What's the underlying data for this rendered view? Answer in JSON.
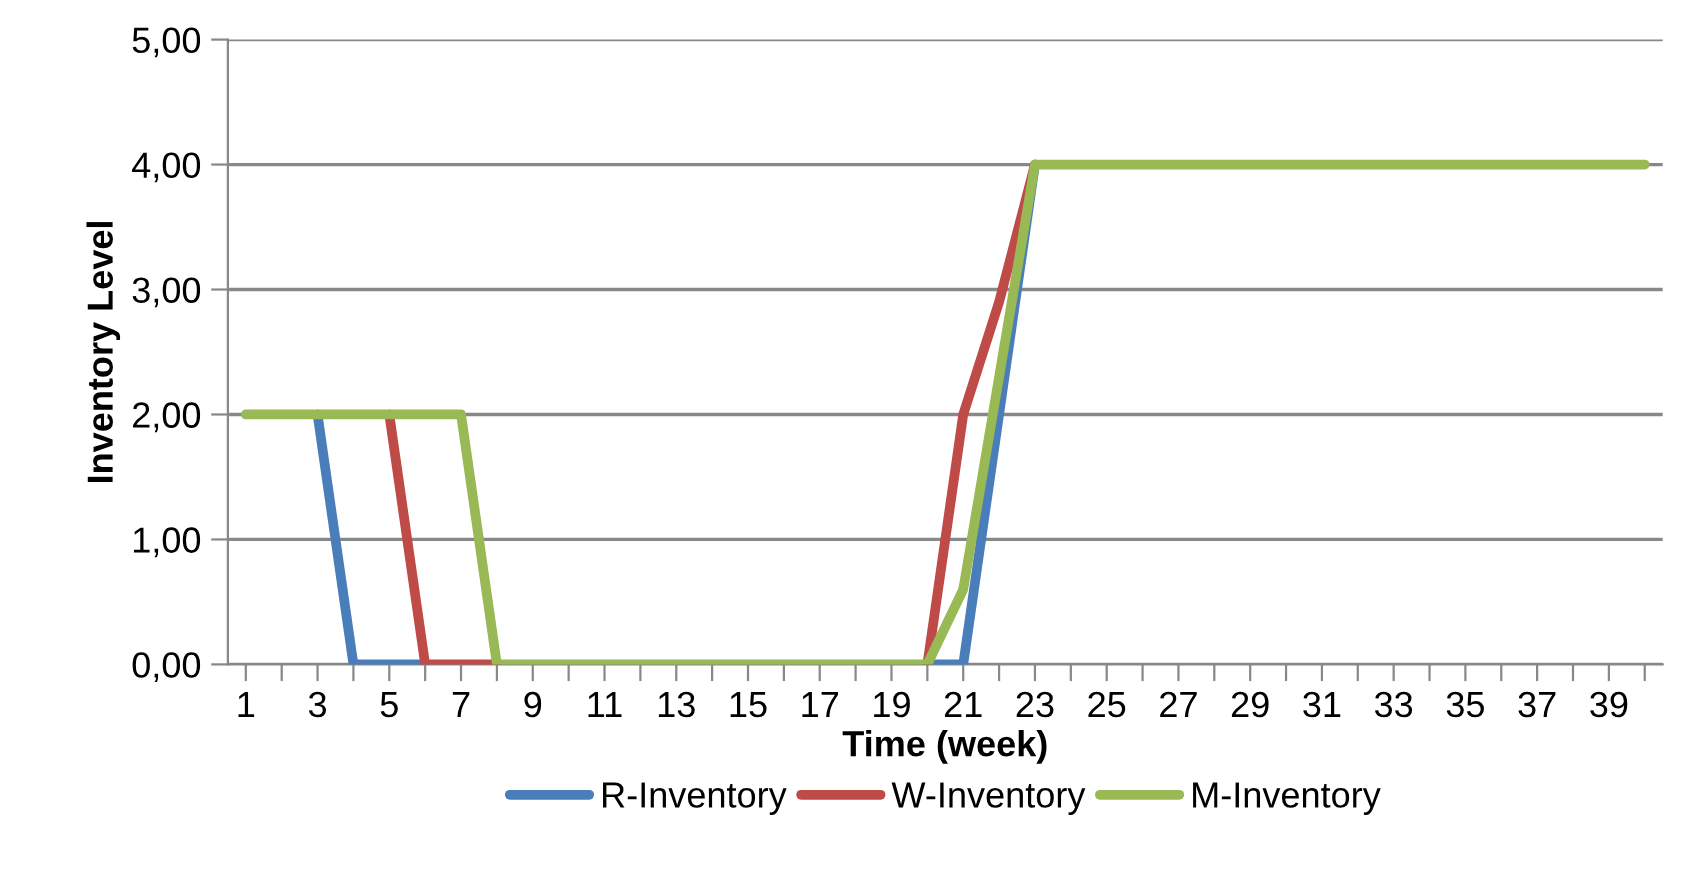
{
  "chart_data": {
    "type": "line",
    "xlabel": "Time (week)",
    "ylabel": "Inventory Level",
    "categories": [
      "1",
      null,
      "3",
      null,
      "5",
      null,
      "7",
      null,
      "9",
      null,
      "11",
      null,
      "13",
      null,
      "15",
      null,
      "17",
      null,
      "19",
      null,
      "21",
      null,
      "23",
      null,
      "25",
      null,
      "27",
      null,
      "29",
      null,
      "31",
      null,
      "33",
      null,
      "35",
      null,
      "37",
      null,
      "39",
      null
    ],
    "series": [
      {
        "name": "R-Inventory",
        "color": "#4a7ebb",
        "values": [
          null,
          null,
          2,
          0,
          0,
          0,
          null,
          null,
          null,
          null,
          null,
          null,
          null,
          null,
          null,
          null,
          null,
          null,
          null,
          0,
          0,
          2,
          4,
          null,
          null,
          null,
          null,
          null,
          null,
          null,
          null,
          null,
          null,
          null,
          null,
          null,
          null,
          null,
          null,
          null
        ]
      },
      {
        "name": "W-Inventory",
        "color": "#be4b48",
        "values": [
          null,
          null,
          null,
          null,
          2,
          0,
          0,
          0,
          null,
          null,
          null,
          null,
          null,
          null,
          null,
          null,
          null,
          null,
          null,
          0,
          2,
          2.9,
          4,
          null,
          null,
          null,
          null,
          null,
          null,
          null,
          null,
          null,
          null,
          null,
          null,
          null,
          null,
          null,
          null,
          null
        ]
      },
      {
        "name": "M-Inventory",
        "color": "#98b954",
        "values": [
          2,
          2,
          2,
          2,
          2,
          2,
          2,
          0,
          0,
          0,
          0,
          0,
          0,
          0,
          0,
          0,
          0,
          0,
          0,
          0,
          0.6,
          2.3,
          4,
          4,
          4,
          4,
          4,
          4,
          4,
          4,
          4,
          4,
          4,
          4,
          4,
          4,
          4,
          4,
          4,
          4
        ]
      }
    ],
    "ylim": [
      0,
      5
    ],
    "yticks": [
      {
        "value": 0,
        "label": "0,00"
      },
      {
        "value": 1,
        "label": "1,00"
      },
      {
        "value": 2,
        "label": "2,00"
      },
      {
        "value": 3,
        "label": "3,00"
      },
      {
        "value": 4,
        "label": "4,00"
      },
      {
        "value": 5,
        "label": "5,00"
      }
    ],
    "grid": "y",
    "legend": "bottom",
    "marker": "none",
    "line_style": "solid"
  }
}
